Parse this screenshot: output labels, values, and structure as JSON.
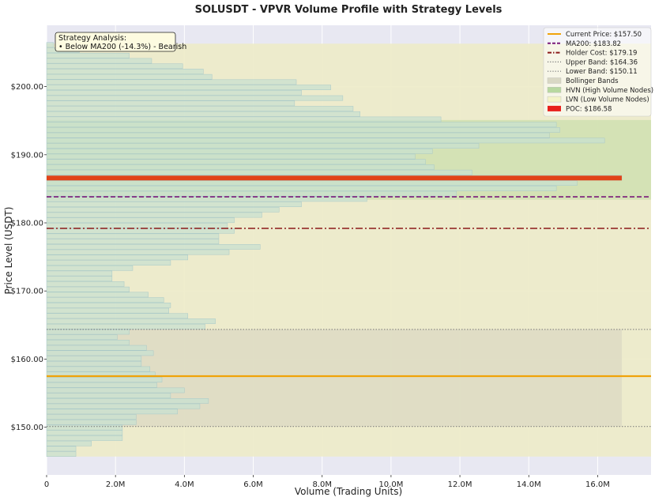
{
  "chart_data": {
    "type": "bar",
    "orientation": "horizontal",
    "title": "SOLUSDT - VPVR Volume Profile with Strategy Levels",
    "xlabel": "Volume (Trading Units)",
    "ylabel": "Price Level (USDT)",
    "xlim": [
      0,
      17.55
    ],
    "ylim": [
      143,
      209
    ],
    "x_unit": "M",
    "x_ticks": [
      0,
      2,
      4,
      6,
      8,
      10,
      12,
      14,
      16
    ],
    "x_tick_labels": [
      "0",
      "2.0M",
      "4.0M",
      "6.0M",
      "8.0M",
      "10.0M",
      "12.0M",
      "14.0M",
      "16.0M"
    ],
    "y_ticks": [
      150,
      160,
      170,
      180,
      190,
      200
    ],
    "y_tick_labels": [
      "$150.00",
      "$160.00",
      "$170.00",
      "$180.00",
      "$190.00",
      "$200.00"
    ],
    "grid": true,
    "legend_position": "top-right",
    "profile": {
      "price_min": 145.7,
      "price_max": 206.3,
      "bin_height": 0.78,
      "volumes": [
        0.85,
        0.85,
        1.3,
        2.2,
        2.2,
        2.2,
        2.6,
        2.6,
        3.8,
        4.45,
        4.7,
        3.6,
        4.0,
        3.2,
        3.35,
        3.15,
        3.0,
        2.75,
        2.75,
        3.1,
        2.9,
        2.4,
        2.05,
        2.4,
        4.6,
        4.9,
        4.1,
        3.55,
        3.6,
        3.4,
        2.95,
        2.4,
        2.25,
        1.9,
        1.9,
        2.5,
        3.6,
        4.1,
        5.3,
        6.2,
        5.0,
        5.0,
        5.45,
        5.25,
        5.45,
        6.25,
        6.75,
        7.4,
        9.3,
        11.9,
        14.8,
        15.4,
        16.7,
        12.35,
        11.25,
        11.0,
        10.7,
        11.2,
        12.55,
        16.2,
        14.6,
        14.9,
        14.8,
        11.45,
        9.1,
        8.9,
        7.2,
        8.6,
        7.4,
        8.25,
        7.25,
        4.8,
        4.55,
        3.95,
        3.05,
        2.4,
        0.95,
        0.2
      ]
    },
    "levels": {
      "current_price": 157.5,
      "ma200": 183.82,
      "holder_cost": 179.19,
      "upper_band": 164.36,
      "lower_band": 150.11,
      "poc": 186.58,
      "value_area": [
        145.7,
        206.3
      ],
      "hvn_zone": [
        183.4,
        195.1
      ]
    },
    "legend": [
      {
        "label": "Current Price: $157.50",
        "style": "solid-line",
        "color": "#f0a30a"
      },
      {
        "label": "MA200: $183.82",
        "style": "dashed-line",
        "color": "#7a1a7a"
      },
      {
        "label": "Holder Cost: $179.19",
        "style": "dashdot-line",
        "color": "#8b1a1a"
      },
      {
        "label": "Upper Band: $164.36",
        "style": "dotted-line",
        "color": "#777777"
      },
      {
        "label": "Lower Band: $150.11",
        "style": "dotted-line",
        "color": "#777777"
      },
      {
        "label": "Bollinger Bands",
        "style": "patch",
        "color": "#d9d8c4"
      },
      {
        "label": "HVN (High Volume Nodes)",
        "style": "patch",
        "color": "#b8d8a0"
      },
      {
        "label": "LVN (Low Volume Nodes)",
        "style": "patch",
        "color": "#f4f4c8"
      },
      {
        "label": "POC: $186.58",
        "style": "thick-line",
        "color": "#e8201c"
      }
    ],
    "annotation": {
      "line1": "Strategy Analysis:",
      "line2": "• Below MA200 (-14.3%) - Bearish"
    },
    "colors": {
      "plot_background": "#e8e8f2",
      "value_area": "#edebc8",
      "bollinger_fill": "#dedcc4",
      "hvn_fill": "#cfe0b0",
      "bar_fill": "#c8e0d0",
      "bar_edge": "#a8c8c8",
      "poc": "#e14318",
      "annotation_bg": "#fdfbe0"
    }
  }
}
